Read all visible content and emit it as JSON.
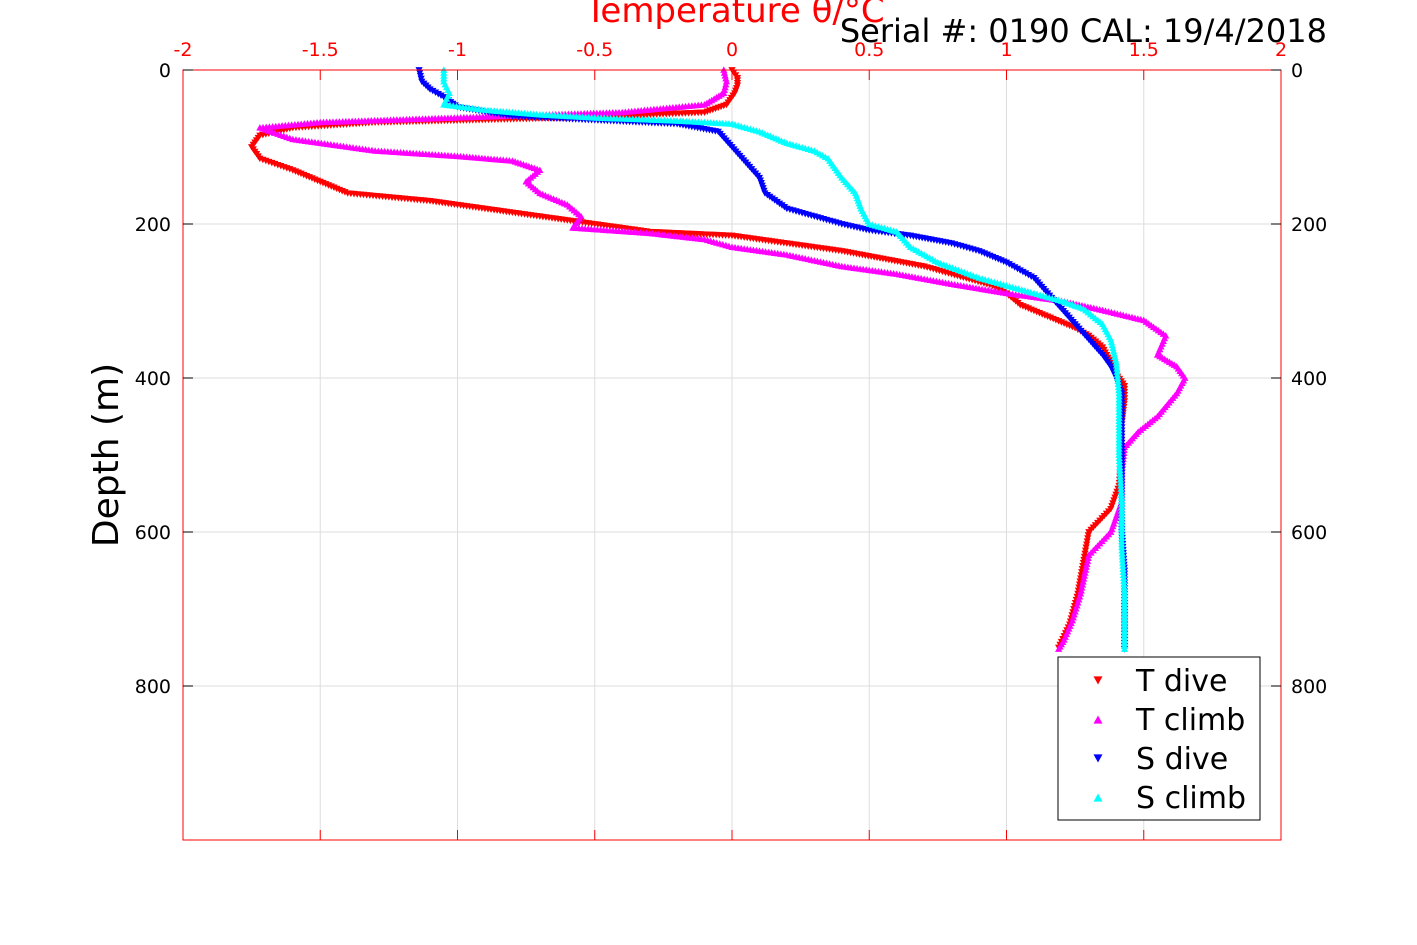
{
  "chart_data": {
    "type": "scatter",
    "title": "Serial #: 0190  CAL: 19/4/2018",
    "xlabel": "Temperature θ/°C",
    "ylabel": "Depth (m)",
    "xlim": [
      -2,
      2
    ],
    "ylim": [
      1000,
      0
    ],
    "x_ticks": [
      "-2",
      "-1.5",
      "-1",
      "-0.5",
      "0",
      "0.5",
      "1",
      "1.5",
      "2"
    ],
    "y_ticks": [
      "0",
      "200",
      "400",
      "600",
      "800"
    ],
    "x_axis_position": "top",
    "y_axis_reversed": true,
    "grid": true,
    "legend_position": "bottom-right",
    "colors": {
      "axis": "#ff0000",
      "grid": "#dddddd"
    },
    "series": [
      {
        "name": "T dive",
        "color": "#ff0000",
        "marker": "triangle-down",
        "points": [
          [
            0.0,
            0
          ],
          [
            0.02,
            10
          ],
          [
            0.02,
            20
          ],
          [
            0.01,
            30
          ],
          [
            -0.02,
            45
          ],
          [
            -0.1,
            55
          ],
          [
            -0.6,
            62
          ],
          [
            -1.3,
            68
          ],
          [
            -1.6,
            75
          ],
          [
            -1.72,
            85
          ],
          [
            -1.75,
            100
          ],
          [
            -1.72,
            115
          ],
          [
            -1.6,
            130
          ],
          [
            -1.5,
            145
          ],
          [
            -1.4,
            160
          ],
          [
            -1.1,
            170
          ],
          [
            -0.9,
            180
          ],
          [
            -0.7,
            190
          ],
          [
            -0.5,
            200
          ],
          [
            -0.3,
            210
          ],
          [
            0.0,
            215
          ],
          [
            0.2,
            225
          ],
          [
            0.4,
            235
          ],
          [
            0.55,
            245
          ],
          [
            0.7,
            255
          ],
          [
            0.8,
            265
          ],
          [
            0.95,
            280
          ],
          [
            1.0,
            290
          ],
          [
            1.05,
            305
          ],
          [
            1.15,
            320
          ],
          [
            1.25,
            335
          ],
          [
            1.3,
            345
          ],
          [
            1.35,
            360
          ],
          [
            1.38,
            380
          ],
          [
            1.4,
            395
          ],
          [
            1.43,
            410
          ],
          [
            1.43,
            430
          ],
          [
            1.42,
            460
          ],
          [
            1.42,
            500
          ],
          [
            1.41,
            540
          ],
          [
            1.38,
            570
          ],
          [
            1.3,
            600
          ],
          [
            1.28,
            640
          ],
          [
            1.26,
            680
          ],
          [
            1.23,
            720
          ],
          [
            1.19,
            750
          ]
        ]
      },
      {
        "name": "T climb",
        "color": "#ff00ff",
        "marker": "triangle-up",
        "points": [
          [
            -0.03,
            0
          ],
          [
            -0.02,
            15
          ],
          [
            -0.03,
            30
          ],
          [
            -0.1,
            45
          ],
          [
            -0.4,
            55
          ],
          [
            -1.0,
            62
          ],
          [
            -1.5,
            68
          ],
          [
            -1.72,
            75
          ],
          [
            -1.6,
            90
          ],
          [
            -1.3,
            105
          ],
          [
            -1.0,
            112
          ],
          [
            -0.8,
            118
          ],
          [
            -0.7,
            130
          ],
          [
            -0.75,
            145
          ],
          [
            -0.7,
            160
          ],
          [
            -0.6,
            175
          ],
          [
            -0.55,
            190
          ],
          [
            -0.58,
            205
          ],
          [
            -0.3,
            212
          ],
          [
            -0.1,
            220
          ],
          [
            0.0,
            230
          ],
          [
            0.2,
            240
          ],
          [
            0.4,
            255
          ],
          [
            0.6,
            265
          ],
          [
            0.8,
            278
          ],
          [
            1.0,
            290
          ],
          [
            1.2,
            300
          ],
          [
            1.35,
            312
          ],
          [
            1.5,
            325
          ],
          [
            1.58,
            345
          ],
          [
            1.55,
            370
          ],
          [
            1.62,
            385
          ],
          [
            1.65,
            400
          ],
          [
            1.62,
            420
          ],
          [
            1.55,
            450
          ],
          [
            1.48,
            470
          ],
          [
            1.43,
            490
          ],
          [
            1.42,
            520
          ],
          [
            1.42,
            560
          ],
          [
            1.38,
            600
          ],
          [
            1.3,
            630
          ],
          [
            1.27,
            680
          ],
          [
            1.24,
            715
          ],
          [
            1.21,
            740
          ],
          [
            1.19,
            752
          ]
        ]
      },
      {
        "name": "S dive",
        "color": "#0000ff",
        "marker": "triangle-down",
        "points": [
          [
            -1.14,
            0
          ],
          [
            -1.13,
            15
          ],
          [
            -1.1,
            25
          ],
          [
            -1.05,
            35
          ],
          [
            -1.0,
            48
          ],
          [
            -0.8,
            60
          ],
          [
            -0.5,
            65
          ],
          [
            -0.2,
            70
          ],
          [
            -0.05,
            80
          ],
          [
            0.0,
            100
          ],
          [
            0.05,
            120
          ],
          [
            0.1,
            140
          ],
          [
            0.12,
            160
          ],
          [
            0.2,
            180
          ],
          [
            0.3,
            190
          ],
          [
            0.4,
            200
          ],
          [
            0.5,
            208
          ],
          [
            0.65,
            215
          ],
          [
            0.8,
            225
          ],
          [
            0.9,
            235
          ],
          [
            1.0,
            250
          ],
          [
            1.1,
            270
          ],
          [
            1.15,
            290
          ],
          [
            1.2,
            310
          ],
          [
            1.25,
            330
          ],
          [
            1.3,
            350
          ],
          [
            1.35,
            370
          ],
          [
            1.38,
            385
          ],
          [
            1.4,
            400
          ],
          [
            1.42,
            420
          ],
          [
            1.42,
            460
          ],
          [
            1.42,
            500
          ],
          [
            1.42,
            550
          ],
          [
            1.42,
            600
          ],
          [
            1.43,
            650
          ],
          [
            1.43,
            700
          ],
          [
            1.43,
            752
          ]
        ]
      },
      {
        "name": "S climb",
        "color": "#00ffff",
        "marker": "triangle-up",
        "points": [
          [
            -1.05,
            0
          ],
          [
            -1.05,
            15
          ],
          [
            -1.03,
            30
          ],
          [
            -1.05,
            45
          ],
          [
            -0.9,
            52
          ],
          [
            -0.7,
            58
          ],
          [
            -0.5,
            62
          ],
          [
            -0.2,
            66
          ],
          [
            0.0,
            70
          ],
          [
            0.1,
            80
          ],
          [
            0.2,
            95
          ],
          [
            0.3,
            105
          ],
          [
            0.35,
            115
          ],
          [
            0.4,
            140
          ],
          [
            0.45,
            160
          ],
          [
            0.47,
            180
          ],
          [
            0.5,
            200
          ],
          [
            0.6,
            210
          ],
          [
            0.65,
            230
          ],
          [
            0.75,
            250
          ],
          [
            0.9,
            270
          ],
          [
            1.0,
            280
          ],
          [
            1.1,
            290
          ],
          [
            1.2,
            300
          ],
          [
            1.28,
            310
          ],
          [
            1.35,
            330
          ],
          [
            1.38,
            350
          ],
          [
            1.4,
            380
          ],
          [
            1.41,
            420
          ],
          [
            1.41,
            460
          ],
          [
            1.41,
            500
          ],
          [
            1.42,
            560
          ],
          [
            1.42,
            620
          ],
          [
            1.43,
            680
          ],
          [
            1.43,
            752
          ]
        ]
      }
    ]
  }
}
